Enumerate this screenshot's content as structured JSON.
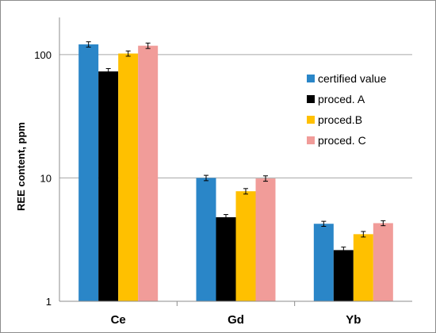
{
  "chart_data": {
    "type": "bar",
    "scale": "log",
    "ylabel": "REE content, ppm",
    "ylim": [
      1,
      200
    ],
    "yticks": [
      "1",
      "10",
      "100"
    ],
    "categories": [
      "Ce",
      "Gd",
      "Yb"
    ],
    "legend_position": "right",
    "grid": "horizontal",
    "series": [
      {
        "name": "certified value",
        "color": "#2a86c8",
        "values": [
          121,
          10.0,
          4.25
        ],
        "errors": [
          6,
          0.5,
          0.2
        ]
      },
      {
        "name": "proced. A",
        "color": "#000000",
        "values": [
          73,
          4.8,
          2.6
        ],
        "errors": [
          4,
          0.25,
          0.15
        ]
      },
      {
        "name": "proced.B",
        "color": "#ffc000",
        "values": [
          102,
          7.8,
          3.5
        ],
        "errors": [
          5,
          0.4,
          0.18
        ]
      },
      {
        "name": "proced. C",
        "color": "#f19c99",
        "values": [
          118,
          9.9,
          4.3
        ],
        "errors": [
          6,
          0.5,
          0.2
        ]
      }
    ]
  }
}
